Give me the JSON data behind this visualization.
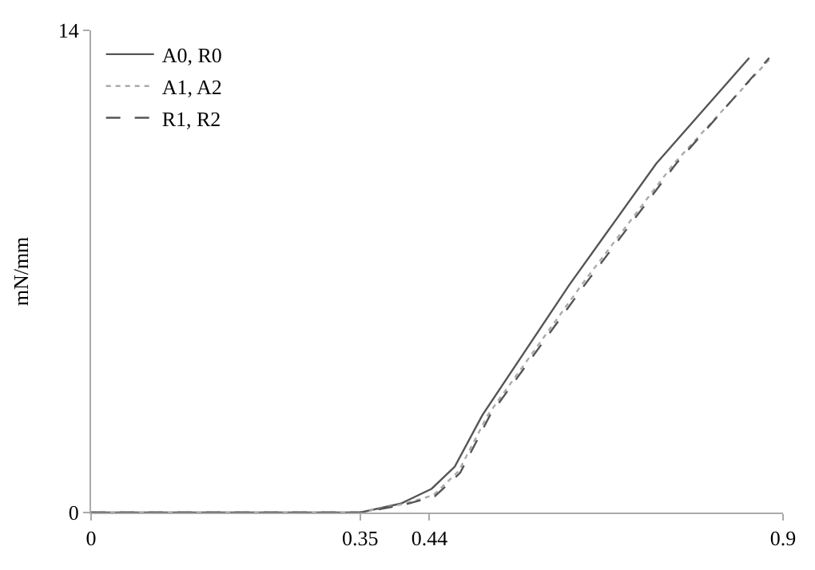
{
  "chart_data": {
    "type": "line",
    "ylabel": "mN/mm",
    "xlim": [
      0,
      0.9
    ],
    "ylim": [
      0,
      14
    ],
    "xticks": [
      0,
      0.35,
      0.44,
      0.9
    ],
    "yticks": [
      0,
      14
    ],
    "legend": "top left",
    "marker": "none",
    "series": [
      {
        "name": "A0, R0",
        "color": "#555555",
        "line_style": "solid",
        "x": [
          0,
          0.35,
          0.403,
          0.443,
          0.473,
          0.509,
          0.622,
          0.735,
          0.856
        ],
        "values": [
          0,
          0,
          0.26,
          0.69,
          1.33,
          2.83,
          6.61,
          10.13,
          13.2
        ]
      },
      {
        "name": "A1, A2",
        "color": "#aaaaaa",
        "line_style": "dotted",
        "x": [
          0,
          0.35,
          0.405,
          0.445,
          0.478,
          0.516,
          0.638,
          0.758,
          0.884
        ],
        "values": [
          0,
          0,
          0.24,
          0.5,
          1.2,
          2.83,
          6.61,
          10.13,
          13.2
        ]
      },
      {
        "name": "R1, R2",
        "color": "#555555",
        "line_style": "dashed",
        "x": [
          0,
          0.35,
          0.406,
          0.447,
          0.48,
          0.519,
          0.642,
          0.761,
          0.882
        ],
        "values": [
          0,
          0,
          0.22,
          0.47,
          1.15,
          2.83,
          6.61,
          10.13,
          13.2
        ]
      }
    ]
  }
}
